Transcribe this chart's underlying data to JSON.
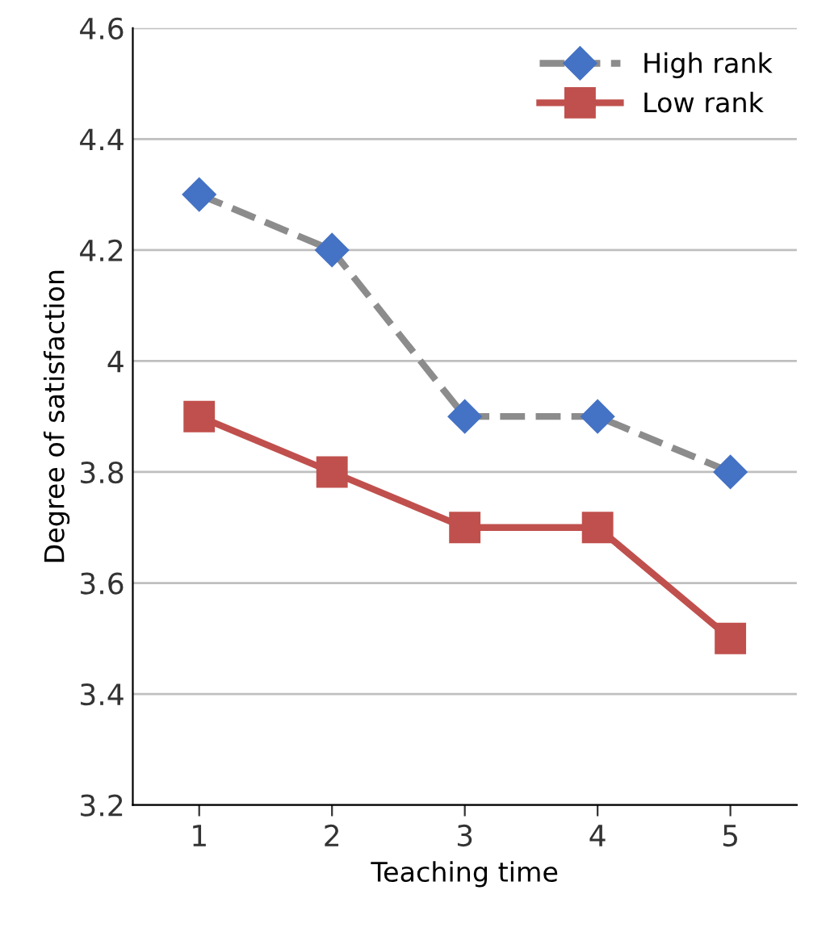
{
  "chart_data": {
    "type": "line",
    "xlabel": "Teaching time",
    "ylabel": "Degree of satisfaction",
    "categories": [
      "1",
      "2",
      "3",
      "4",
      "5"
    ],
    "series": [
      {
        "name": "High rank",
        "color": "#8c8c8c",
        "colors": [
          "#4472c4",
          "#4472c4",
          "#4472c4",
          "#4472c4",
          "#4472c4"
        ],
        "marker": "diamond",
        "line_style": "dashed",
        "values": [
          4.3,
          4.2,
          3.9,
          3.9,
          3.8
        ]
      },
      {
        "name": "Low rank",
        "color": "#c0504d",
        "marker": "square",
        "line_style": "solid",
        "values": [
          3.9,
          3.8,
          3.7,
          3.7,
          3.5
        ]
      }
    ],
    "ylim": [
      3.2,
      4.6
    ],
    "yticks": [
      3.2,
      3.4,
      3.6,
      3.8,
      4,
      4.2,
      4.4,
      4.6
    ],
    "grid": "y",
    "legend": "top right"
  }
}
